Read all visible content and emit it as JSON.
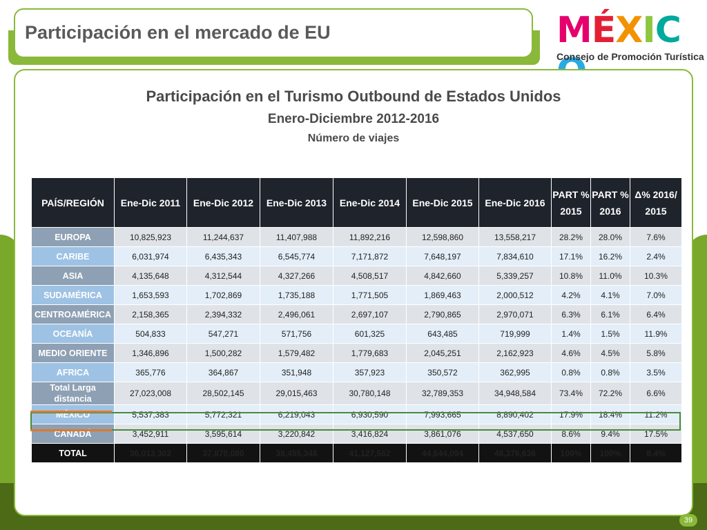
{
  "slide": {
    "title": "Participación en el mercado de EU",
    "page_number": "39"
  },
  "logo": {
    "word": "MÉXICO",
    "letters": [
      {
        "char": "M",
        "color": "#e5006d"
      },
      {
        "char": "É",
        "color": "#e41f35"
      },
      {
        "char": "X",
        "color": "#f39200"
      },
      {
        "char": "I",
        "color": "#8dc63f"
      },
      {
        "char": "C",
        "color": "#00a99d"
      },
      {
        "char": "O",
        "color": "#29abe2"
      }
    ],
    "subtitle": "Consejo de Promoción Turística"
  },
  "headings": {
    "main": "Participación en el Turismo Outbound de Estados Unidos",
    "period": "Enero-Diciembre 2012-2016",
    "unit": "Número de viajes"
  },
  "table": {
    "columns": [
      "PAÍS/REGIÓN",
      "Ene-Dic 2011",
      "Ene-Dic 2012",
      "Ene-Dic 2013",
      "Ene-Dic 2014",
      "Ene-Dic 2015",
      "Ene-Dic 2016",
      "PART % 2015",
      "PART % 2016",
      "Δ% 2016/ 2015"
    ],
    "rows": [
      {
        "region": "EUROPA",
        "values": [
          "10,825,923",
          "11,244,637",
          "11,407,988",
          "11,892,216",
          "12,598,860",
          "13,558,217",
          "28.2%",
          "28.0%",
          "7.6%"
        ]
      },
      {
        "region": "CARIBE",
        "values": [
          "6,031,974",
          "6,435,343",
          "6,545,774",
          "7,171,872",
          "7,648,197",
          "7,834,610",
          "17.1%",
          "16.2%",
          "2.4%"
        ]
      },
      {
        "region": "ASIA",
        "values": [
          "4,135,648",
          "4,312,544",
          "4,327,266",
          "4,508,517",
          "4,842,660",
          "5,339,257",
          "10.8%",
          "11.0%",
          "10.3%"
        ]
      },
      {
        "region": "SUDAMÉRICA",
        "values": [
          "1,653,593",
          "1,702,869",
          "1,735,188",
          "1,771,505",
          "1,869,463",
          "2,000,512",
          "4.2%",
          "4.1%",
          "7.0%"
        ]
      },
      {
        "region": "CENTROAMÉRICA",
        "values": [
          "2,158,365",
          "2,394,332",
          "2,496,061",
          "2,697,107",
          "2,790,865",
          "2,970,071",
          "6.3%",
          "6.1%",
          "6.4%"
        ]
      },
      {
        "region": "OCEANÍA",
        "values": [
          "504,833",
          "547,271",
          "571,756",
          "601,325",
          "643,485",
          "719,999",
          "1.4%",
          "1.5%",
          "11.9%"
        ]
      },
      {
        "region": "MEDIO ORIENTE",
        "values": [
          "1,346,896",
          "1,500,282",
          "1,579,482",
          "1,779,683",
          "2,045,251",
          "2,162,923",
          "4.6%",
          "4.5%",
          "5.8%"
        ]
      },
      {
        "region": "AFRICA",
        "values": [
          "365,776",
          "364,867",
          "351,948",
          "357,923",
          "350,572",
          "362,995",
          "0.8%",
          "0.8%",
          "3.5%"
        ]
      },
      {
        "region": "Total Larga distancia",
        "values": [
          "27,023,008",
          "28,502,145",
          "29,015,463",
          "30,780,148",
          "32,789,353",
          "34,948,584",
          "73.4%",
          "72.2%",
          "6.6%"
        ]
      },
      {
        "region": "MÉXICO",
        "values": [
          "5,537,383",
          "5,772,321",
          "6,219,043",
          "6,930,590",
          "7,993,665",
          "8,890,402",
          "17.9%",
          "18.4%",
          "11.2%"
        ]
      },
      {
        "region": "CANADÁ",
        "values": [
          "3,452,911",
          "3,595,614",
          "3,220,842",
          "3,416,824",
          "3,861,076",
          "4,537,650",
          "8.6%",
          "9.4%",
          "17.5%"
        ]
      },
      {
        "region": "TOTAL",
        "values": [
          "36,013,302",
          "37,870,080",
          "38,455,348",
          "41,127,562",
          "44,644,094",
          "48,376,636",
          "100%",
          "100%",
          "8.4%"
        ]
      }
    ]
  }
}
